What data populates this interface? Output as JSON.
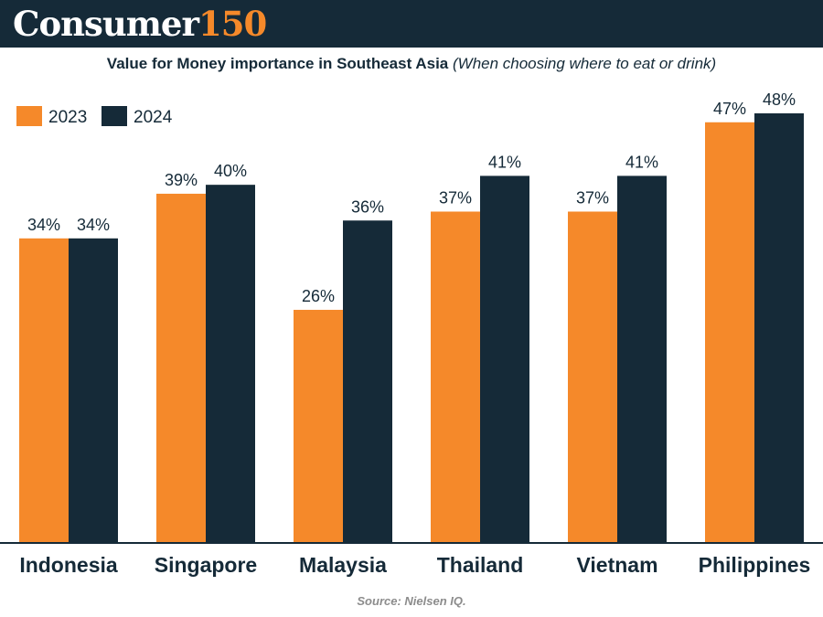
{
  "header": {
    "brand_main": "Consumer",
    "brand_number": "150",
    "brand_colors": {
      "background": "#152a38",
      "text": "#ffffff",
      "number": "#f5892a"
    }
  },
  "title": {
    "main": "Value for Money importance in Southeast Asia",
    "sub": "(When choosing where to eat or drink)"
  },
  "source": "Source: Nielsen IQ.",
  "chart_data": {
    "type": "bar",
    "categories": [
      "Indonesia",
      "Singapore",
      "Malaysia",
      "Thailand",
      "Vietnam",
      "Philippines"
    ],
    "series": [
      {
        "name": "2023",
        "color": "#f5892a",
        "values": [
          34,
          39,
          26,
          37,
          37,
          47
        ],
        "labels": [
          "34%",
          "39%",
          "26%",
          "37%",
          "37%",
          "47%"
        ]
      },
      {
        "name": "2024",
        "color": "#152a38",
        "values": [
          34,
          40,
          36,
          41,
          41,
          48
        ],
        "labels": [
          "34%",
          "40%",
          "36%",
          "41%",
          "41%",
          "48%"
        ]
      }
    ],
    "ylim": [
      0,
      48
    ],
    "unit": "%",
    "grid": false,
    "legend_position": "top-left"
  }
}
